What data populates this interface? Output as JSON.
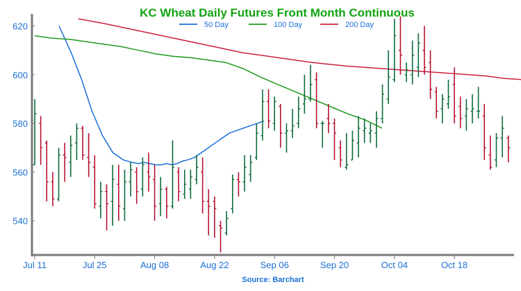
{
  "chart_data": {
    "type": "ohlc",
    "title": "KC Wheat Daily Futures Front Month Continuous",
    "source": "Source: Barchart",
    "ylim": [
      527,
      624
    ],
    "yticks": [
      540,
      560,
      580,
      600,
      620
    ],
    "xticks": [
      {
        "index": 0,
        "label": "Jul 11"
      },
      {
        "index": 10,
        "label": "Jul 25"
      },
      {
        "index": 20,
        "label": "Aug 08"
      },
      {
        "index": 30,
        "label": "Aug 22"
      },
      {
        "index": 40,
        "label": "Sep 06"
      },
      {
        "index": 50,
        "label": "Sep 20"
      },
      {
        "index": 60,
        "label": "Oct 04"
      },
      {
        "index": 70,
        "label": "Oct 18"
      }
    ],
    "x_count": 80,
    "legend": [
      {
        "name": "50 Day",
        "color": "#1a6fd6"
      },
      {
        "name": "100 Day",
        "color": "#1e9a1e"
      },
      {
        "name": "200 Day",
        "color": "#cc1f3f"
      }
    ],
    "colors": {
      "title": "#13a313",
      "axis_text": "#1a6fd6",
      "up": "#0d6b3a",
      "down": "#b5122f",
      "axis": "#7a7a7a"
    },
    "bars": [
      {
        "d": "Jul 11",
        "o": 563,
        "h": 590,
        "l": 563,
        "c": 584
      },
      {
        "d": "Jul 12",
        "o": 580,
        "h": 583,
        "l": 563,
        "c": 570
      },
      {
        "d": "Jul 13",
        "o": 572,
        "h": 573,
        "l": 548,
        "c": 556
      },
      {
        "d": "Jul 14",
        "o": 556,
        "h": 560,
        "l": 546,
        "c": 549
      },
      {
        "d": "Jul 15",
        "o": 549,
        "h": 570,
        "l": 548,
        "c": 567
      },
      {
        "d": "Jul 18",
        "o": 567,
        "h": 572,
        "l": 556,
        "c": 566
      },
      {
        "d": "Jul 19",
        "o": 564,
        "h": 575,
        "l": 558,
        "c": 571
      },
      {
        "d": "Jul 20",
        "o": 572,
        "h": 580,
        "l": 565,
        "c": 578
      },
      {
        "d": "Jul 21",
        "o": 578,
        "h": 579,
        "l": 565,
        "c": 567
      },
      {
        "d": "Jul 22",
        "o": 566,
        "h": 576,
        "l": 558,
        "c": 564
      },
      {
        "d": "Jul 25",
        "o": 562,
        "h": 567,
        "l": 545,
        "c": 547
      },
      {
        "d": "Jul 26",
        "o": 546,
        "h": 556,
        "l": 541,
        "c": 552
      },
      {
        "d": "Jul 27",
        "o": 552,
        "h": 555,
        "l": 536,
        "c": 547
      },
      {
        "d": "Jul 28",
        "o": 548,
        "h": 563,
        "l": 538,
        "c": 557
      },
      {
        "d": "Jul 29",
        "o": 555,
        "h": 563,
        "l": 540,
        "c": 546
      },
      {
        "d": "Aug 01",
        "o": 545,
        "h": 561,
        "l": 540,
        "c": 556
      },
      {
        "d": "Aug 02",
        "o": 556,
        "h": 564,
        "l": 550,
        "c": 561
      },
      {
        "d": "Aug 03",
        "o": 560,
        "h": 562,
        "l": 547,
        "c": 552
      },
      {
        "d": "Aug 04",
        "o": 553,
        "h": 566,
        "l": 550,
        "c": 563
      },
      {
        "d": "Aug 05",
        "o": 560,
        "h": 568,
        "l": 552,
        "c": 558
      },
      {
        "d": "Aug 08",
        "o": 557,
        "h": 563,
        "l": 540,
        "c": 546
      },
      {
        "d": "Aug 09",
        "o": 547,
        "h": 558,
        "l": 542,
        "c": 553
      },
      {
        "d": "Aug 10",
        "o": 553,
        "h": 554,
        "l": 541,
        "c": 546
      },
      {
        "d": "Aug 11",
        "o": 546,
        "h": 573,
        "l": 545,
        "c": 562
      },
      {
        "d": "Aug 12",
        "o": 560,
        "h": 562,
        "l": 548,
        "c": 552
      },
      {
        "d": "Aug 15",
        "o": 551,
        "h": 561,
        "l": 549,
        "c": 555
      },
      {
        "d": "Aug 16",
        "o": 553,
        "h": 561,
        "l": 549,
        "c": 558
      },
      {
        "d": "Aug 17",
        "o": 557,
        "h": 567,
        "l": 555,
        "c": 562
      },
      {
        "d": "Aug 18",
        "o": 560,
        "h": 566,
        "l": 543,
        "c": 548
      },
      {
        "d": "Aug 19",
        "o": 548,
        "h": 553,
        "l": 534,
        "c": 546
      },
      {
        "d": "Aug 22",
        "o": 548,
        "h": 550,
        "l": 533,
        "c": 545
      },
      {
        "d": "Aug 23",
        "o": 538,
        "h": 540,
        "l": 527,
        "c": 537
      },
      {
        "d": "Aug 24",
        "o": 535,
        "h": 544,
        "l": 534,
        "c": 541
      },
      {
        "d": "Aug 25",
        "o": 545,
        "h": 559,
        "l": 543,
        "c": 557
      },
      {
        "d": "Aug 26",
        "o": 557,
        "h": 560,
        "l": 550,
        "c": 556
      },
      {
        "d": "Aug 29",
        "o": 556,
        "h": 567,
        "l": 552,
        "c": 562
      },
      {
        "d": "Aug 30",
        "o": 559,
        "h": 567,
        "l": 556,
        "c": 564
      },
      {
        "d": "Aug 31",
        "o": 566,
        "h": 580,
        "l": 565,
        "c": 576
      },
      {
        "d": "Sep 01",
        "o": 575,
        "h": 594,
        "l": 573,
        "c": 589
      },
      {
        "d": "Sep 02",
        "o": 589,
        "h": 594,
        "l": 578,
        "c": 581
      },
      {
        "d": "Sep 06",
        "o": 580,
        "h": 591,
        "l": 577,
        "c": 589
      },
      {
        "d": "Sep 07",
        "o": 587,
        "h": 588,
        "l": 570,
        "c": 576
      },
      {
        "d": "Sep 08",
        "o": 576,
        "h": 580,
        "l": 568,
        "c": 577
      },
      {
        "d": "Sep 09",
        "o": 577,
        "h": 586,
        "l": 574,
        "c": 579
      },
      {
        "d": "Sep 12",
        "o": 580,
        "h": 591,
        "l": 578,
        "c": 586
      },
      {
        "d": "Sep 13",
        "o": 588,
        "h": 600,
        "l": 584,
        "c": 590
      },
      {
        "d": "Sep 14",
        "o": 590,
        "h": 604,
        "l": 589,
        "c": 596
      },
      {
        "d": "Sep 15",
        "o": 598,
        "h": 601,
        "l": 578,
        "c": 580
      },
      {
        "d": "Sep 16",
        "o": 580,
        "h": 581,
        "l": 570,
        "c": 580
      },
      {
        "d": "Sep 19",
        "o": 582,
        "h": 588,
        "l": 576,
        "c": 580
      },
      {
        "d": "Sep 20",
        "o": 580,
        "h": 582,
        "l": 565,
        "c": 576
      },
      {
        "d": "Sep 21",
        "o": 570,
        "h": 573,
        "l": 562,
        "c": 565
      },
      {
        "d": "Sep 22",
        "o": 562,
        "h": 576,
        "l": 561,
        "c": 563
      },
      {
        "d": "Sep 23",
        "o": 565,
        "h": 577,
        "l": 565,
        "c": 573
      },
      {
        "d": "Sep 26",
        "o": 572,
        "h": 583,
        "l": 566,
        "c": 578
      },
      {
        "d": "Sep 27",
        "o": 577,
        "h": 582,
        "l": 572,
        "c": 578
      },
      {
        "d": "Sep 28",
        "o": 576,
        "h": 580,
        "l": 572,
        "c": 577
      },
      {
        "d": "Sep 29",
        "o": 576,
        "h": 585,
        "l": 570,
        "c": 582
      },
      {
        "d": "Sep 30",
        "o": 582,
        "h": 596,
        "l": 580,
        "c": 592
      },
      {
        "d": "Oct 03",
        "o": 590,
        "h": 610,
        "l": 588,
        "c": 599
      },
      {
        "d": "Oct 04",
        "o": 598,
        "h": 623,
        "l": 597,
        "c": 616
      },
      {
        "d": "Oct 05",
        "o": 610,
        "h": 624,
        "l": 600,
        "c": 608
      },
      {
        "d": "Oct 06",
        "o": 600,
        "h": 605,
        "l": 597,
        "c": 602
      },
      {
        "d": "Oct 07",
        "o": 600,
        "h": 614,
        "l": 596,
        "c": 608
      },
      {
        "d": "Oct 10",
        "o": 603,
        "h": 617,
        "l": 599,
        "c": 613
      },
      {
        "d": "Oct 11",
        "o": 610,
        "h": 620,
        "l": 600,
        "c": 603
      },
      {
        "d": "Oct 12",
        "o": 605,
        "h": 610,
        "l": 590,
        "c": 594
      },
      {
        "d": "Oct 13",
        "o": 593,
        "h": 595,
        "l": 582,
        "c": 585
      },
      {
        "d": "Oct 14",
        "o": 586,
        "h": 592,
        "l": 580,
        "c": 590
      },
      {
        "d": "Oct 17",
        "o": 588,
        "h": 598,
        "l": 586,
        "c": 591
      },
      {
        "d": "Oct 18",
        "o": 596,
        "h": 603,
        "l": 580,
        "c": 583
      },
      {
        "d": "Oct 19",
        "o": 587,
        "h": 591,
        "l": 578,
        "c": 582
      },
      {
        "d": "Oct 20",
        "o": 583,
        "h": 590,
        "l": 577,
        "c": 586
      },
      {
        "d": "Oct 21",
        "o": 585,
        "h": 592,
        "l": 580,
        "c": 586
      },
      {
        "d": "Oct 24",
        "o": 585,
        "h": 595,
        "l": 582,
        "c": 585
      },
      {
        "d": "Oct 25",
        "o": 583,
        "h": 588,
        "l": 565,
        "c": 570
      },
      {
        "d": "Oct 26",
        "o": 567,
        "h": 575,
        "l": 561,
        "c": 562
      },
      {
        "d": "Oct 27",
        "o": 565,
        "h": 576,
        "l": 562,
        "c": 574
      },
      {
        "d": "Oct 28",
        "o": 574,
        "h": 583,
        "l": 566,
        "c": 578
      },
      {
        "d": "Oct 31",
        "o": 574,
        "h": 575,
        "l": 564,
        "c": 570
      }
    ],
    "ma_series": [
      {
        "name": "50 Day",
        "values": [
          [
            14,
            620
          ],
          [
            21,
            609
          ],
          [
            27,
            598
          ],
          [
            33,
            585
          ],
          [
            39,
            575
          ],
          [
            45,
            568
          ],
          [
            51,
            565
          ],
          [
            56,
            564
          ],
          [
            60,
            563.5
          ],
          [
            63,
            564
          ],
          [
            66,
            563.5
          ],
          [
            70,
            563
          ],
          [
            73,
            563
          ],
          [
            76,
            563.5
          ],
          [
            79,
            563
          ],
          [
            82,
            563.5
          ],
          [
            85,
            564.5
          ],
          [
            88,
            565
          ],
          [
            92,
            566
          ],
          [
            96,
            568
          ],
          [
            100,
            570
          ],
          [
            104,
            572
          ],
          [
            108,
            574
          ],
          [
            112,
            576
          ],
          [
            116,
            577
          ],
          [
            120,
            578
          ],
          [
            124,
            579
          ],
          [
            128,
            580
          ],
          [
            132,
            581
          ]
        ]
      },
      {
        "name": "100 Day",
        "values": [
          [
            0,
            616
          ],
          [
            10,
            615
          ],
          [
            20,
            614.5
          ],
          [
            30,
            613.5
          ],
          [
            40,
            612.5
          ],
          [
            50,
            611.5
          ],
          [
            60,
            610
          ],
          [
            70,
            608.5
          ],
          [
            80,
            607.5
          ],
          [
            90,
            607
          ],
          [
            100,
            606
          ],
          [
            110,
            605
          ],
          [
            120,
            602.5
          ],
          [
            130,
            599
          ],
          [
            140,
            596
          ],
          [
            150,
            593
          ],
          [
            160,
            590
          ],
          [
            170,
            587
          ],
          [
            180,
            584
          ],
          [
            190,
            581.5
          ],
          [
            200,
            578
          ]
        ]
      },
      {
        "name": "200 Day",
        "values": [
          [
            25,
            623
          ],
          [
            40,
            621
          ],
          [
            60,
            618
          ],
          [
            80,
            615
          ],
          [
            100,
            612
          ],
          [
            120,
            609
          ],
          [
            140,
            607
          ],
          [
            160,
            605
          ],
          [
            180,
            603.5
          ],
          [
            200,
            602.5
          ],
          [
            220,
            601.5
          ],
          [
            240,
            600.5
          ],
          [
            260,
            599.5
          ],
          [
            270,
            598.5
          ],
          [
            280,
            598
          ]
        ]
      }
    ]
  }
}
